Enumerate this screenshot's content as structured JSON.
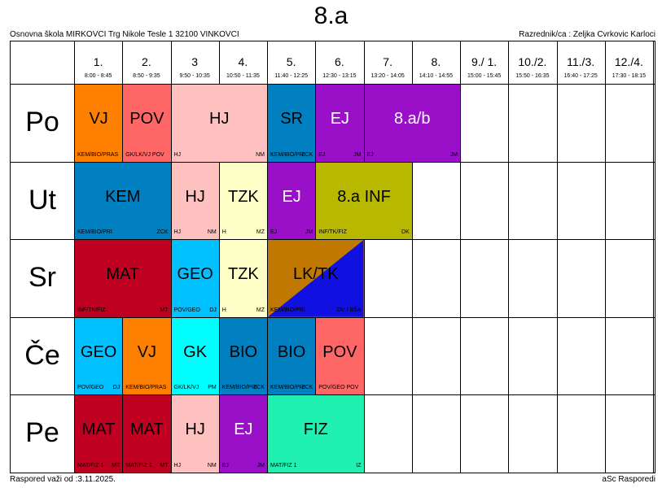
{
  "title": "8.a",
  "school": "Osnovna škola MIRKOVCI Trg Nikole Tesle 1 32100 VINKOVCI",
  "teacher": "Razrednik/ca : Zeljka Cvrkovic Karloci",
  "footer_left": "Raspored važi od :3.11.2025.",
  "footer_right": "aSc Rasporedi",
  "periods": [
    {
      "num": "1.",
      "time": "8:00 - 8:45"
    },
    {
      "num": "2.",
      "time": "8:50 - 9:35"
    },
    {
      "num": "3",
      "time": "9:50 - 10:35"
    },
    {
      "num": "4.",
      "time": "10:50 - 11:35"
    },
    {
      "num": "5.",
      "time": "11:40 - 12:25"
    },
    {
      "num": "6.",
      "time": "12:30 - 13:15"
    },
    {
      "num": "7.",
      "time": "13:20 - 14:05"
    },
    {
      "num": "8.",
      "time": "14:10 - 14:55"
    },
    {
      "num": "9./ 1.",
      "time": "15:00 - 15:45"
    },
    {
      "num": "10./2.",
      "time": "15:50 - 16:35"
    },
    {
      "num": "11./3.",
      "time": "16:40 - 17:25"
    },
    {
      "num": "12./4.",
      "time": "17:30 - 18:15"
    }
  ],
  "days": [
    "Po",
    "Ut",
    "Sr",
    "Če",
    "Pe"
  ],
  "lessons": [
    {
      "day": 0,
      "start": 0,
      "span": 1,
      "subject": "VJ",
      "color": "#ff7f00",
      "text_color": "#000",
      "room": "KEM/BIO/PRAS",
      "teacher": ""
    },
    {
      "day": 0,
      "start": 1,
      "span": 1,
      "subject": "POV",
      "color": "#ff6666",
      "text_color": "#000",
      "room": "GK/LK/VJ POV",
      "teacher": ""
    },
    {
      "day": 0,
      "start": 2,
      "span": 2,
      "subject": "HJ",
      "color": "#ffc0c0",
      "text_color": "#000",
      "room": "HJ",
      "teacher": "NM"
    },
    {
      "day": 0,
      "start": 4,
      "span": 1,
      "subject": "SR",
      "color": "#0080c0",
      "text_color": "#000",
      "room": "KEM/BIO/PRI",
      "teacher": "ZCK"
    },
    {
      "day": 0,
      "start": 5,
      "span": 1,
      "subject": "EJ",
      "color": "#9a10c8",
      "text_color": "#fff",
      "room": "EJ",
      "teacher": "JM"
    },
    {
      "day": 0,
      "start": 6,
      "span": 2,
      "subject": "8.a/b",
      "color": "#9a10c8",
      "text_color": "#fff",
      "room": "EJ",
      "teacher": "JM"
    },
    {
      "day": 1,
      "start": 0,
      "span": 2,
      "subject": "KEM",
      "color": "#0080c0",
      "text_color": "#000",
      "room": "KEM/BIO/PRI",
      "teacher": "ZCK"
    },
    {
      "day": 1,
      "start": 2,
      "span": 1,
      "subject": "HJ",
      "color": "#ffc0c0",
      "text_color": "#000",
      "room": "HJ",
      "teacher": "NM"
    },
    {
      "day": 1,
      "start": 3,
      "span": 1,
      "subject": "TZK",
      "color": "#ffffc8",
      "text_color": "#000",
      "room": "H",
      "teacher": "MZ"
    },
    {
      "day": 1,
      "start": 4,
      "span": 1,
      "subject": "EJ",
      "color": "#9a10c8",
      "text_color": "#fff",
      "room": "EJ",
      "teacher": "JM"
    },
    {
      "day": 1,
      "start": 5,
      "span": 2,
      "subject": "8.a INF",
      "color": "#b8b800",
      "text_color": "#000",
      "room": "INF/TK/FIZ",
      "teacher": "DK"
    },
    {
      "day": 2,
      "start": 0,
      "span": 2,
      "subject": "MAT",
      "color": "#c00020",
      "text_color": "#000",
      "room": "INF/TK/FIZ",
      "teacher": "MT"
    },
    {
      "day": 2,
      "start": 2,
      "span": 1,
      "subject": "GEO",
      "color": "#00c0ff",
      "text_color": "#000",
      "room": "POV/GEO",
      "teacher": "DJ"
    },
    {
      "day": 2,
      "start": 3,
      "span": 1,
      "subject": "TZK",
      "color": "#ffffc8",
      "text_color": "#000",
      "room": "H",
      "teacher": "MZ"
    },
    {
      "day": 2,
      "start": 4,
      "span": 2,
      "subject": "LK/TK",
      "color": "#c07800",
      "color2": "#1010e0",
      "text_color": "#000",
      "room": "KEM/BIO/PRI",
      "teacher": "DV / BŠA"
    },
    {
      "day": 3,
      "start": 0,
      "span": 1,
      "subject": "GEO",
      "color": "#00c0ff",
      "text_color": "#000",
      "room": "POV/GEO",
      "teacher": "DJ"
    },
    {
      "day": 3,
      "start": 1,
      "span": 1,
      "subject": "VJ",
      "color": "#ff7f00",
      "text_color": "#000",
      "room": "KEM/BIO/PRAS",
      "teacher": ""
    },
    {
      "day": 3,
      "start": 2,
      "span": 1,
      "subject": "GK",
      "color": "#00ffff",
      "text_color": "#000",
      "room": "GK/LK/VJ",
      "teacher": "PM"
    },
    {
      "day": 3,
      "start": 3,
      "span": 1,
      "subject": "BIO",
      "color": "#0080c0",
      "text_color": "#000",
      "room": "KEM/BIO/PRI",
      "teacher": "ZCK"
    },
    {
      "day": 3,
      "start": 4,
      "span": 1,
      "subject": "BIO",
      "color": "#0080c0",
      "text_color": "#000",
      "room": "KEM/BIO/PRI",
      "teacher": "ZCK"
    },
    {
      "day": 3,
      "start": 5,
      "span": 1,
      "subject": "POV",
      "color": "#ff6666",
      "text_color": "#000",
      "room": "POV/GEO POV",
      "teacher": ""
    },
    {
      "day": 4,
      "start": 0,
      "span": 1,
      "subject": "MAT",
      "color": "#c00020",
      "text_color": "#000",
      "room": "MAT/FIZ 1",
      "teacher": "MT"
    },
    {
      "day": 4,
      "start": 1,
      "span": 1,
      "subject": "MAT",
      "color": "#c00020",
      "text_color": "#000",
      "room": "MAT/FIZ 1",
      "teacher": "MT"
    },
    {
      "day": 4,
      "start": 2,
      "span": 1,
      "subject": "HJ",
      "color": "#ffc0c0",
      "text_color": "#000",
      "room": "HJ",
      "teacher": "NM"
    },
    {
      "day": 4,
      "start": 3,
      "span": 1,
      "subject": "EJ",
      "color": "#9a10c8",
      "text_color": "#fff",
      "room": "EJ",
      "teacher": "JM"
    },
    {
      "day": 4,
      "start": 4,
      "span": 2,
      "subject": "FIZ",
      "color": "#20f0b0",
      "text_color": "#000",
      "room": "MAT/FIZ 1",
      "teacher": "IZ"
    }
  ]
}
